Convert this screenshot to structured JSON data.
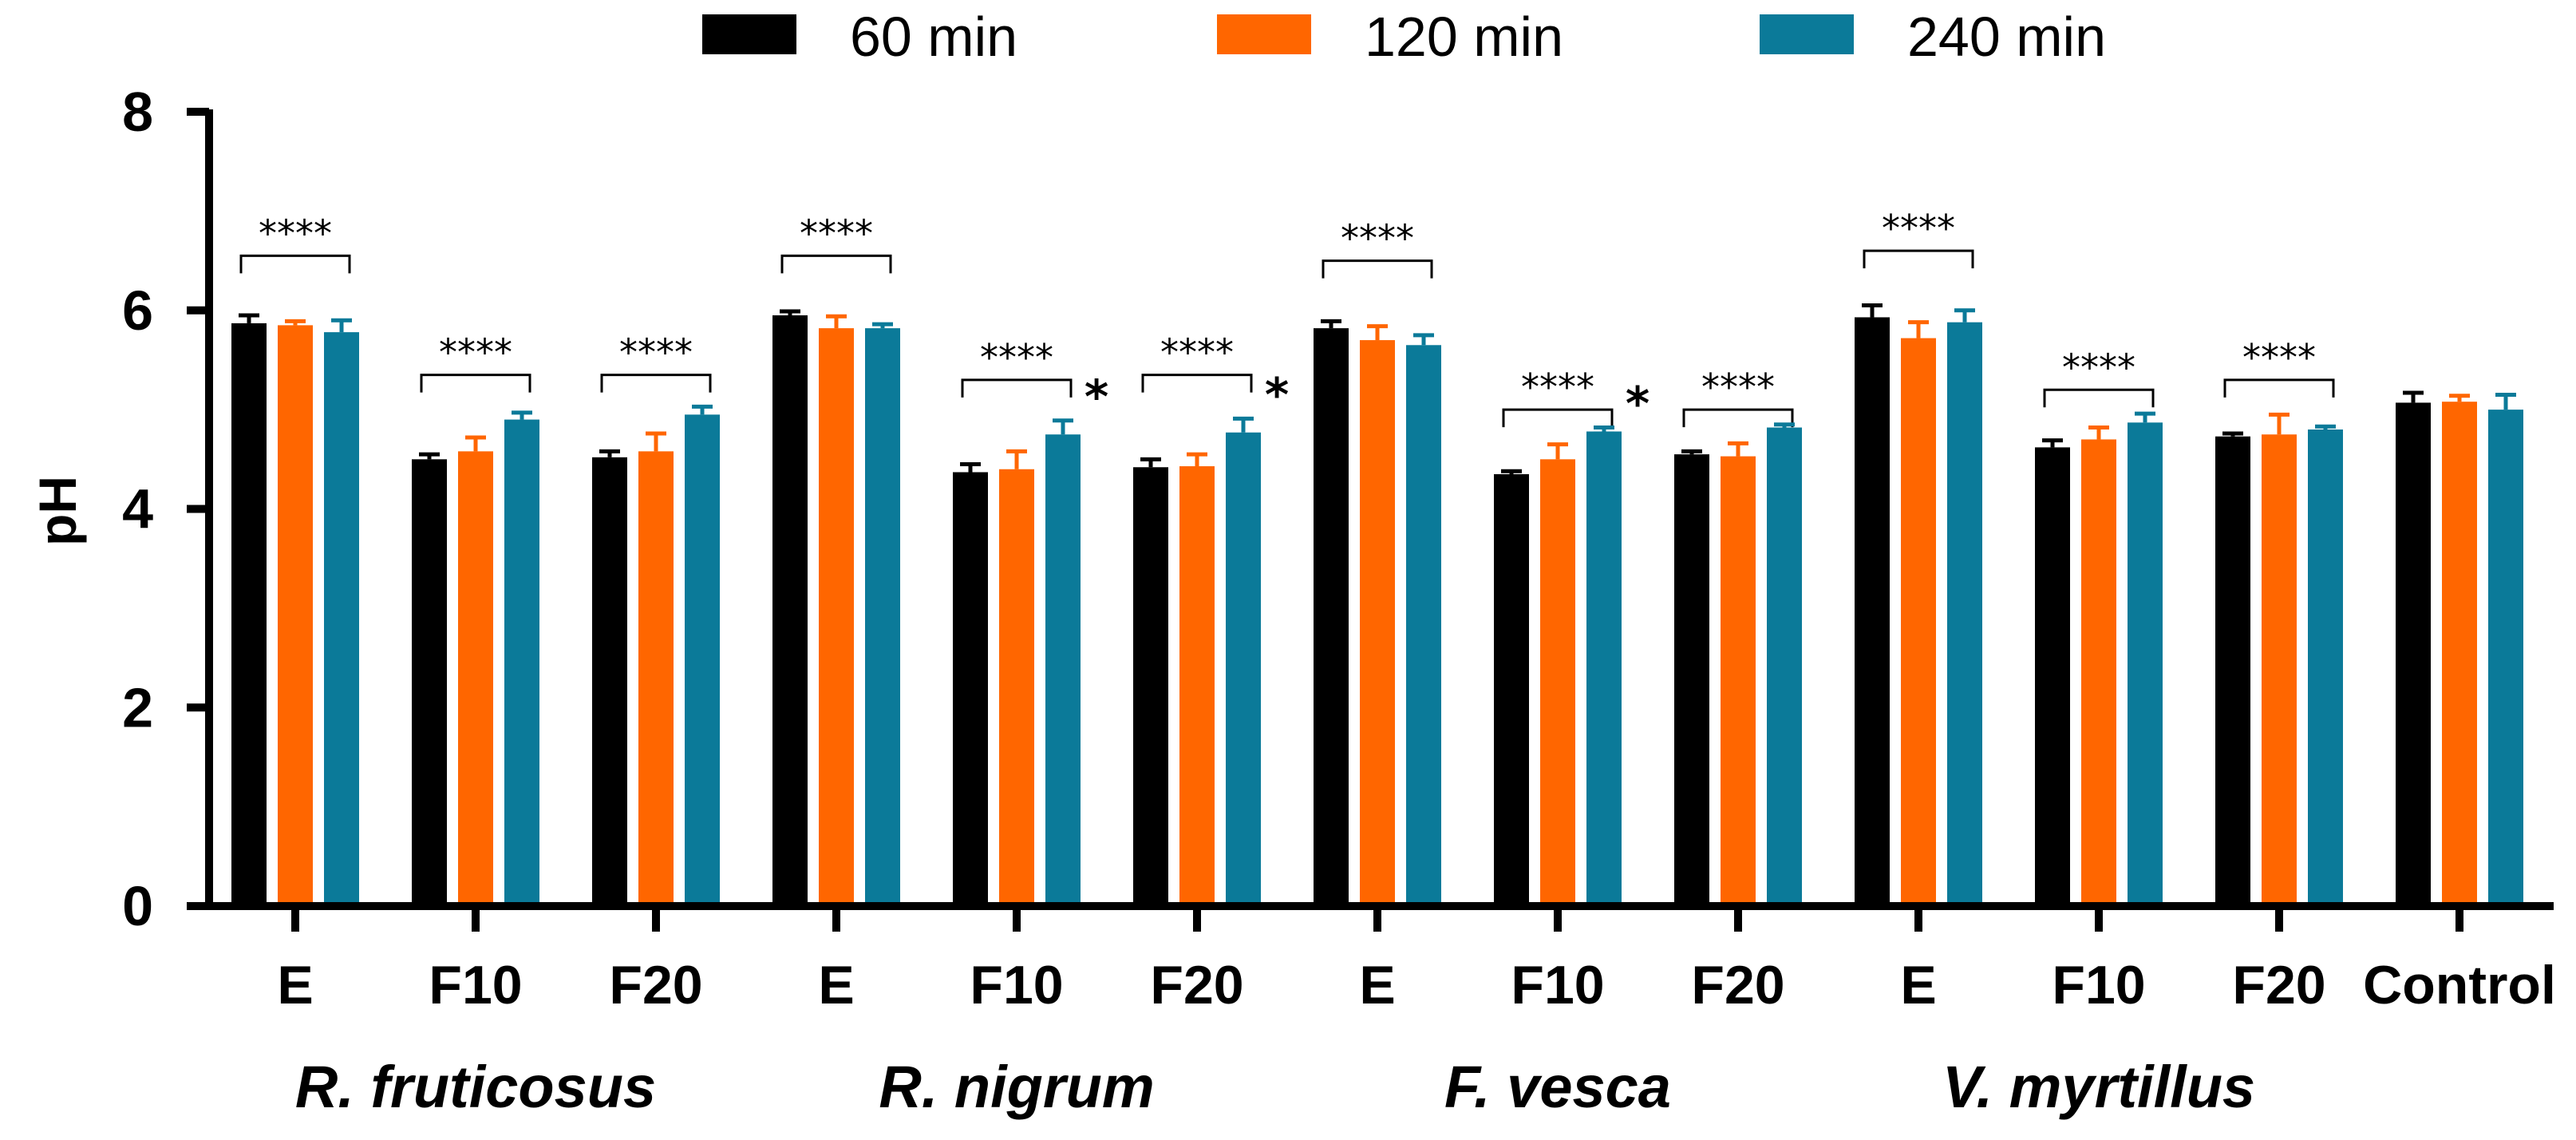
{
  "chart_data": {
    "type": "bar",
    "title": "",
    "xlabel": "",
    "ylabel": "pH",
    "ylim": [
      0,
      8
    ],
    "yticks": [
      0,
      2,
      4,
      6,
      8
    ],
    "grid": false,
    "legend_position": "top-center",
    "categories": [
      "E",
      "F10",
      "F20",
      "E",
      "F10",
      "F20",
      "E",
      "F10",
      "F20",
      "E",
      "F10",
      "F20",
      "Control"
    ],
    "groups": [
      {
        "label": "R. fruticosus",
        "span": [
          0,
          2
        ]
      },
      {
        "label": "R. nigrum",
        "span": [
          3,
          5
        ]
      },
      {
        "label": "F. vesca",
        "span": [
          6,
          8
        ]
      },
      {
        "label": "V. myrtillus",
        "span": [
          9,
          11
        ]
      }
    ],
    "series": [
      {
        "name": "60 min",
        "color": "#000000",
        "values": [
          5.87,
          4.5,
          4.52,
          5.95,
          4.37,
          4.42,
          5.82,
          4.35,
          4.55,
          5.93,
          4.62,
          4.73,
          5.07
        ],
        "errors": [
          0.08,
          0.05,
          0.06,
          0.04,
          0.08,
          0.08,
          0.07,
          0.03,
          0.03,
          0.12,
          0.07,
          0.03,
          0.1
        ]
      },
      {
        "name": "120 min",
        "color": "#FF6600",
        "values": [
          5.85,
          4.58,
          4.58,
          5.82,
          4.4,
          4.43,
          5.7,
          4.5,
          4.53,
          5.72,
          4.7,
          4.75,
          5.08
        ],
        "errors": [
          0.04,
          0.14,
          0.18,
          0.12,
          0.18,
          0.12,
          0.14,
          0.15,
          0.13,
          0.16,
          0.12,
          0.2,
          0.06
        ]
      },
      {
        "name": "240 min",
        "color": "#0B7A99",
        "values": [
          5.78,
          4.9,
          4.95,
          5.82,
          4.75,
          4.77,
          5.65,
          4.78,
          4.82,
          5.88,
          4.87,
          4.8,
          5.0
        ],
        "errors": [
          0.12,
          0.07,
          0.08,
          0.04,
          0.14,
          0.14,
          0.1,
          0.04,
          0.03,
          0.12,
          0.09,
          0.03,
          0.15
        ]
      }
    ],
    "annotations": [
      {
        "type": "bracket",
        "text": "****",
        "category": 0,
        "y": 6.55
      },
      {
        "type": "bracket",
        "text": "****",
        "category": 1,
        "y": 5.35
      },
      {
        "type": "bracket",
        "text": "****",
        "category": 2,
        "y": 5.35
      },
      {
        "type": "bracket",
        "text": "****",
        "category": 3,
        "y": 6.55
      },
      {
        "type": "bracket",
        "text": "****",
        "category": 4,
        "y": 5.3
      },
      {
        "type": "star",
        "text": "*",
        "category": 4,
        "series": 2
      },
      {
        "type": "bracket",
        "text": "****",
        "category": 5,
        "y": 5.35
      },
      {
        "type": "star",
        "text": "*",
        "category": 5,
        "series": 2
      },
      {
        "type": "bracket",
        "text": "****",
        "category": 6,
        "y": 6.5
      },
      {
        "type": "bracket",
        "text": "****",
        "category": 7,
        "y": 5.0
      },
      {
        "type": "star",
        "text": "*",
        "category": 7,
        "series": 2
      },
      {
        "type": "bracket",
        "text": "****",
        "category": 8,
        "y": 5.0
      },
      {
        "type": "bracket",
        "text": "****",
        "category": 9,
        "y": 6.6
      },
      {
        "type": "bracket",
        "text": "****",
        "category": 10,
        "y": 5.2
      },
      {
        "type": "bracket",
        "text": "****",
        "category": 11,
        "y": 5.3
      }
    ]
  }
}
